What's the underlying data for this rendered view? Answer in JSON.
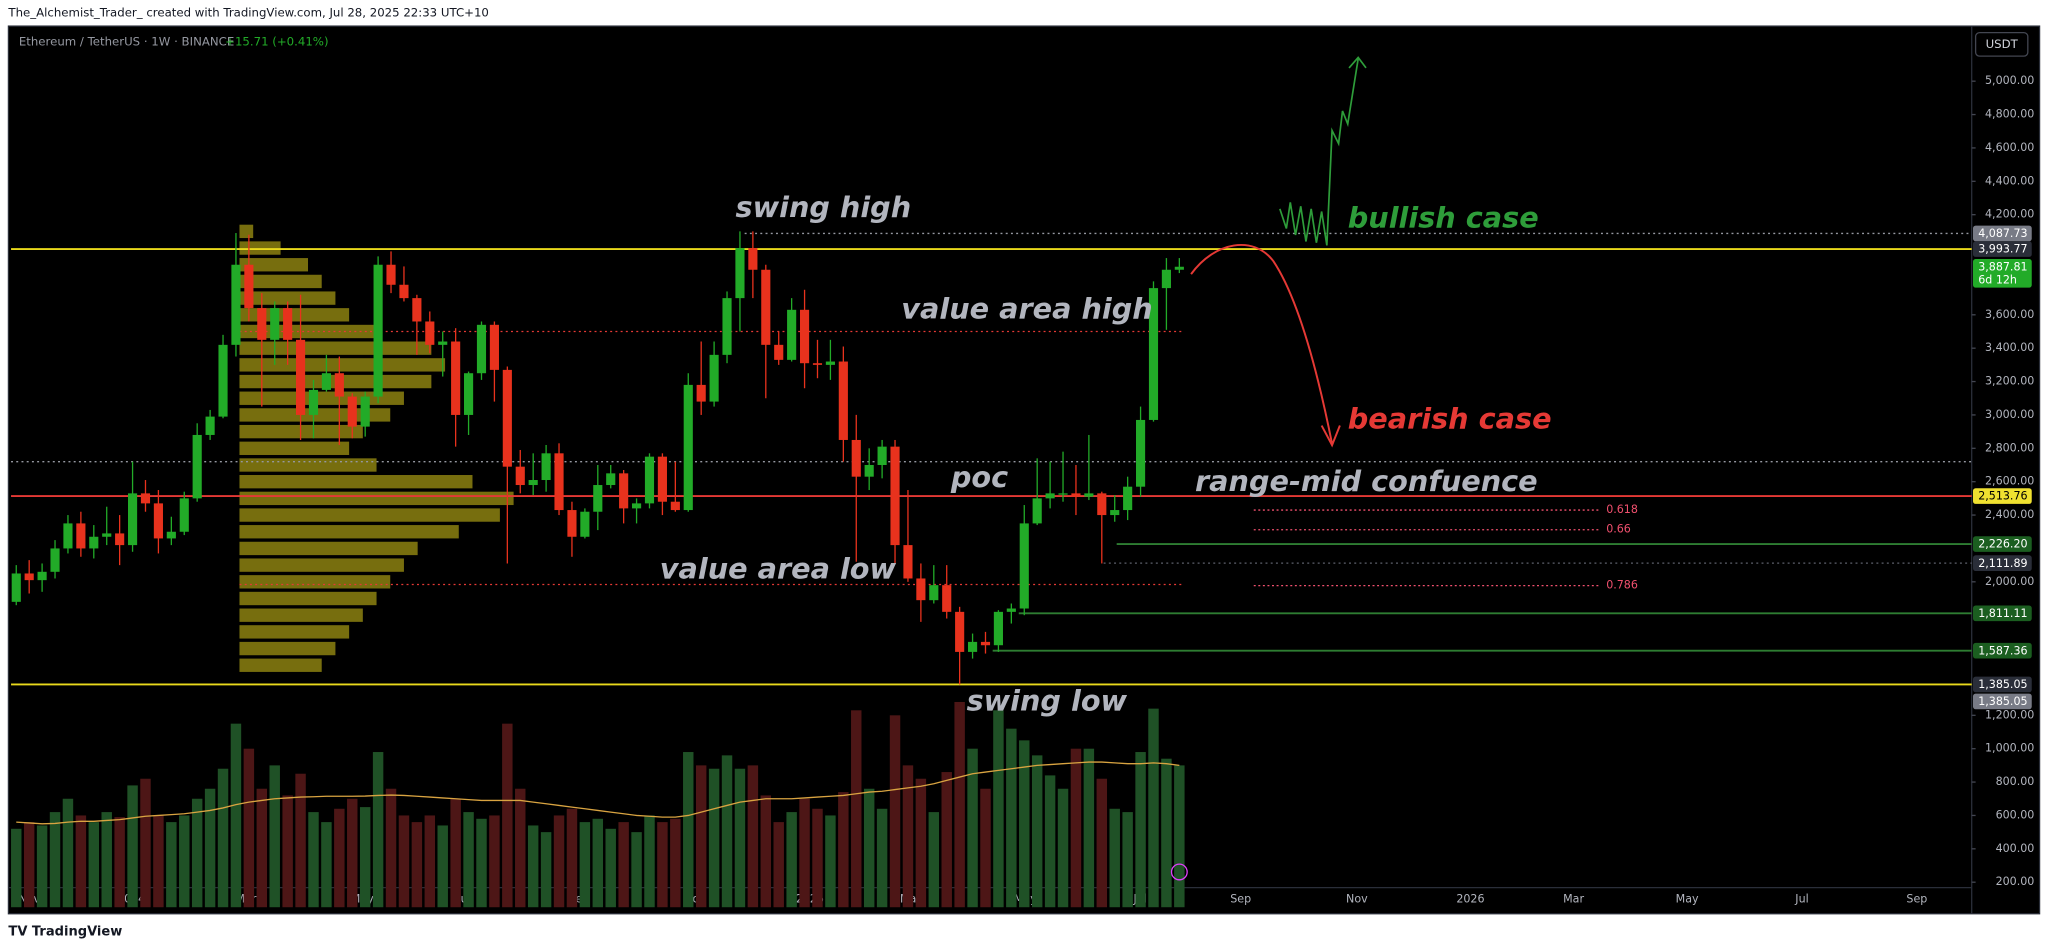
{
  "header": {
    "author_line": "The_Alchemist_Trader_ created with TradingView.com, Jul 28, 2025 22:33 UTC+10"
  },
  "footer": {
    "brand": "TradingView"
  },
  "chart_data": {
    "type": "candlestick",
    "symbol": "Ethereum / TetherUS · 1W · BINANCE",
    "change": "+15.71 (+0.41%)",
    "currency": "USDT",
    "up_color": "#22ab28",
    "down_color": "#e8321d",
    "x_labels": [
      "Nov",
      "2024",
      "Mar",
      "May",
      "Jul",
      "Sep",
      "Nov",
      "2025",
      "Mar",
      "May",
      "Jul",
      "Sep",
      "Nov",
      "2026",
      "Mar",
      "May",
      "Jul",
      "Sep"
    ],
    "candles": [
      [
        1880,
        2100,
        1860,
        2050
      ],
      [
        2050,
        2130,
        1930,
        2010
      ],
      [
        2010,
        2110,
        1940,
        2060
      ],
      [
        2060,
        2250,
        2020,
        2200
      ],
      [
        2200,
        2400,
        2170,
        2350
      ],
      [
        2350,
        2420,
        2150,
        2200
      ],
      [
        2200,
        2340,
        2140,
        2270
      ],
      [
        2270,
        2450,
        2220,
        2290
      ],
      [
        2290,
        2400,
        2100,
        2220
      ],
      [
        2220,
        2720,
        2180,
        2530
      ],
      [
        2530,
        2610,
        2420,
        2470
      ],
      [
        2470,
        2550,
        2170,
        2260
      ],
      [
        2260,
        2390,
        2220,
        2300
      ],
      [
        2300,
        2540,
        2280,
        2500
      ],
      [
        2500,
        2950,
        2480,
        2880
      ],
      [
        2880,
        3030,
        2850,
        2990
      ],
      [
        2990,
        3480,
        2980,
        3420
      ],
      [
        3420,
        4090,
        3350,
        3900
      ],
      [
        3900,
        4080,
        3560,
        3640
      ],
      [
        3640,
        3730,
        3050,
        3450
      ],
      [
        3450,
        3680,
        3300,
        3640
      ],
      [
        3640,
        3680,
        3300,
        3450
      ],
      [
        3450,
        3720,
        2850,
        3000
      ],
      [
        3000,
        3210,
        2860,
        3150
      ],
      [
        3150,
        3360,
        3140,
        3250
      ],
      [
        3250,
        3350,
        2820,
        3110
      ],
      [
        3110,
        3130,
        2860,
        2930
      ],
      [
        2930,
        3140,
        2870,
        3110
      ],
      [
        3110,
        3950,
        3070,
        3900
      ],
      [
        3900,
        3980,
        3730,
        3780
      ],
      [
        3780,
        3890,
        3680,
        3700
      ],
      [
        3700,
        3720,
        3360,
        3560
      ],
      [
        3560,
        3620,
        3370,
        3420
      ],
      [
        3420,
        3500,
        3230,
        3440
      ],
      [
        3440,
        3520,
        2810,
        3000
      ],
      [
        3000,
        3260,
        2880,
        3250
      ],
      [
        3250,
        3560,
        3210,
        3540
      ],
      [
        3540,
        3560,
        3080,
        3270
      ],
      [
        3270,
        3290,
        2110,
        2690
      ],
      [
        2690,
        2790,
        2530,
        2580
      ],
      [
        2580,
        2770,
        2520,
        2610
      ],
      [
        2610,
        2820,
        2540,
        2770
      ],
      [
        2770,
        2830,
        2400,
        2430
      ],
      [
        2430,
        2480,
        2150,
        2270
      ],
      [
        2270,
        2440,
        2260,
        2420
      ],
      [
        2420,
        2700,
        2310,
        2580
      ],
      [
        2580,
        2700,
        2560,
        2650
      ],
      [
        2650,
        2670,
        2350,
        2440
      ],
      [
        2440,
        2500,
        2350,
        2470
      ],
      [
        2470,
        2770,
        2440,
        2750
      ],
      [
        2750,
        2770,
        2400,
        2480
      ],
      [
        2480,
        2720,
        2420,
        2430
      ],
      [
        2430,
        3250,
        2420,
        3180
      ],
      [
        3180,
        3440,
        3000,
        3080
      ],
      [
        3080,
        3440,
        3050,
        3360
      ],
      [
        3360,
        3740,
        3310,
        3700
      ],
      [
        3700,
        4100,
        3500,
        4000
      ],
      [
        4000,
        4100,
        3700,
        3870
      ],
      [
        3870,
        3900,
        3100,
        3420
      ],
      [
        3420,
        3500,
        3300,
        3330
      ],
      [
        3330,
        3700,
        3320,
        3630
      ],
      [
        3630,
        3750,
        3160,
        3310
      ],
      [
        3310,
        3450,
        3220,
        3300
      ],
      [
        3300,
        3450,
        3210,
        3320
      ],
      [
        3320,
        3410,
        2720,
        2850
      ],
      [
        2850,
        3000,
        2120,
        2630
      ],
      [
        2630,
        2800,
        2550,
        2700
      ],
      [
        2700,
        2850,
        2620,
        2810
      ],
      [
        2810,
        2850,
        2110,
        2220
      ],
      [
        2220,
        2550,
        2000,
        2020
      ],
      [
        2020,
        2110,
        1760,
        1890
      ],
      [
        1890,
        2100,
        1870,
        1980
      ],
      [
        1980,
        2100,
        1780,
        1820
      ],
      [
        1820,
        1850,
        1385,
        1580
      ],
      [
        1580,
        1690,
        1540,
        1640
      ],
      [
        1640,
        1700,
        1570,
        1620
      ],
      [
        1620,
        1830,
        1580,
        1820
      ],
      [
        1820,
        1870,
        1750,
        1840
      ],
      [
        1840,
        2460,
        1800,
        2350
      ],
      [
        2350,
        2740,
        2340,
        2500
      ],
      [
        2500,
        2720,
        2440,
        2530
      ],
      [
        2530,
        2780,
        2480,
        2530
      ],
      [
        2530,
        2700,
        2400,
        2510
      ],
      [
        2510,
        2880,
        2490,
        2530
      ],
      [
        2530,
        2540,
        2110,
        2400
      ],
      [
        2400,
        2520,
        2360,
        2430
      ],
      [
        2430,
        2630,
        2370,
        2570
      ],
      [
        2570,
        3050,
        2510,
        2970
      ],
      [
        2970,
        3800,
        2960,
        3760
      ],
      [
        3760,
        3940,
        3510,
        3870
      ],
      [
        3870,
        3940,
        3850,
        3888
      ]
    ],
    "volume": [
      520,
      560,
      540,
      620,
      700,
      600,
      560,
      620,
      590,
      780,
      820,
      600,
      560,
      600,
      700,
      760,
      880,
      1150,
      1000,
      760,
      900,
      720,
      850,
      620,
      560,
      640,
      700,
      650,
      980,
      760,
      600,
      560,
      600,
      540,
      700,
      620,
      580,
      600,
      1150,
      760,
      540,
      500,
      600,
      640,
      560,
      580,
      520,
      560,
      500,
      600,
      560,
      580,
      980,
      900,
      880,
      960,
      880,
      900,
      720,
      560,
      620,
      700,
      640,
      600,
      740,
      1230,
      760,
      640,
      1200,
      900,
      820,
      620,
      860,
      1280,
      1000,
      760,
      1230,
      1120,
      1050,
      960,
      840,
      760,
      1000,
      1000,
      820,
      640,
      620,
      980,
      1240,
      940,
      900
    ],
    "volume_up_color": "#1f5126",
    "volume_down_color": "#4d1616",
    "volume_ma": [
      560,
      555,
      550,
      552,
      560,
      565,
      565,
      570,
      575,
      585,
      595,
      600,
      605,
      610,
      620,
      630,
      645,
      665,
      680,
      690,
      700,
      705,
      710,
      712,
      715,
      715,
      715,
      716,
      720,
      722,
      720,
      715,
      710,
      705,
      700,
      695,
      690,
      690,
      690,
      690,
      680,
      670,
      660,
      650,
      640,
      630,
      620,
      610,
      600,
      595,
      590,
      590,
      600,
      620,
      640,
      660,
      680,
      690,
      700,
      700,
      700,
      705,
      710,
      715,
      720,
      730,
      740,
      745,
      755,
      765,
      775,
      790,
      810,
      830,
      850,
      860,
      870,
      880,
      890,
      900,
      905,
      910,
      915,
      920,
      920,
      915,
      910,
      910,
      915,
      910,
      900
    ],
    "volume_ma_color": "#d9a441",
    "volume_profile": {
      "color": "#d8c81a",
      "prices": [
        1500,
        1600,
        1700,
        1800,
        1900,
        2000,
        2100,
        2200,
        2300,
        2400,
        2500,
        2600,
        2700,
        2800,
        2900,
        3000,
        3100,
        3200,
        3300,
        3400,
        3500,
        3600,
        3700,
        3800,
        3900,
        4000,
        4100
      ],
      "values": [
        30,
        35,
        40,
        45,
        50,
        55,
        60,
        65,
        80,
        95,
        100,
        85,
        50,
        40,
        45,
        55,
        60,
        70,
        75,
        70,
        50,
        40,
        35,
        30,
        25,
        15,
        5
      ]
    },
    "ylim": [
      50,
      5330
    ],
    "yticks": [
      {
        "value": 5000,
        "label": "5,000.00"
      },
      {
        "value": 4800,
        "label": "4,800.00"
      },
      {
        "value": 4600,
        "label": "4,600.00"
      },
      {
        "value": 4400,
        "label": "4,400.00"
      },
      {
        "value": 4200,
        "label": "4,200.00"
      },
      {
        "value": 3600,
        "label": "3,600.00"
      },
      {
        "value": 3400,
        "label": "3,400.00"
      },
      {
        "value": 3200,
        "label": "3,200.00"
      },
      {
        "value": 3000,
        "label": "3,000.00"
      },
      {
        "value": 2800,
        "label": "2,800.00"
      },
      {
        "value": 2600,
        "label": "2,600.00"
      },
      {
        "value": 2400,
        "label": "2,400.00"
      },
      {
        "value": 2000,
        "label": "2,000.00"
      },
      {
        "value": 1200,
        "label": "1,200.00"
      },
      {
        "value": 1000,
        "label": "1,000.00"
      },
      {
        "value": 800,
        "label": "800.00"
      },
      {
        "value": 600,
        "label": "600.00"
      },
      {
        "value": 400,
        "label": "400.00"
      },
      {
        "value": 200,
        "label": "200.00"
      }
    ],
    "levels": [
      {
        "value": 3993.77,
        "color": "#e9d91c",
        "style": "solid"
      },
      {
        "value": 4087.73,
        "color": "#9598a1",
        "style": "dotted"
      },
      {
        "value": 2720,
        "color": "#9598a1",
        "style": "dotted"
      },
      {
        "value": 3500,
        "color": "#e53935",
        "style": "dotted"
      },
      {
        "value": 2513.76,
        "color": "#e53935",
        "style": "solid"
      },
      {
        "value": 1984,
        "color": "#e53935",
        "style": "dotted"
      },
      {
        "value": 2226.2,
        "color": "#2e7d32",
        "style": "solid"
      },
      {
        "value": 2111.89,
        "color": "#5d606b",
        "style": "dotted"
      },
      {
        "value": 1811.11,
        "color": "#2e7d32",
        "style": "solid"
      },
      {
        "value": 1587.36,
        "color": "#2e7d32",
        "style": "solid"
      },
      {
        "value": 1385.05,
        "color": "#e9d91c",
        "style": "solid"
      }
    ],
    "price_tags": [
      {
        "value": 4087.73,
        "label": "4,087.73",
        "color": "#787b86",
        "text_color": "#ffffff"
      },
      {
        "value": 3993.77,
        "label": "3,993.77",
        "color": "#2a2e39",
        "text_color": "#ffffff"
      },
      {
        "value": 3887.81,
        "label": "3,887.81",
        "sublabel": "6d 12h",
        "color": "#22ab28",
        "text_color": "#ffffff"
      },
      {
        "value": 2513.76,
        "label": "2,513.76",
        "color": "#f0e130",
        "text_color": "#000000"
      },
      {
        "value": 2226.2,
        "label": "2,226.20",
        "color": "#1b5e20",
        "text_color": "#ffffff"
      },
      {
        "value": 2111.89,
        "label": "2,111.89",
        "color": "#2a2e39",
        "text_color": "#ffffff"
      },
      {
        "value": 1811.11,
        "label": "1,811.11",
        "color": "#1b5e20",
        "text_color": "#ffffff"
      },
      {
        "value": 1587.36,
        "label": "1,587.36",
        "color": "#1b5e20",
        "text_color": "#ffffff"
      },
      {
        "value": 1385.05,
        "label": "1,385.05",
        "color": "#2a2e39",
        "text_color": "#ffffff"
      },
      {
        "value": 1385.05,
        "label": "1,385.05",
        "color": "#787b86",
        "text_color": "#ffffff"
      }
    ],
    "fib_levels": [
      {
        "value": 2430,
        "label": "0.618"
      },
      {
        "value": 2312,
        "label": "0.66"
      },
      {
        "value": 1977,
        "label": "0.786"
      }
    ],
    "fib_color": "#f0506e",
    "annotations": [
      {
        "text": "swing high",
        "color": "#b2b5be"
      },
      {
        "text": "value area high",
        "color": "#b2b5be"
      },
      {
        "text": "poc",
        "color": "#b2b5be"
      },
      {
        "text": "range-mid confuence",
        "color": "#b2b5be"
      },
      {
        "text": "value area low",
        "color": "#b2b5be"
      },
      {
        "text": "swing low",
        "color": "#b2b5be"
      },
      {
        "text": "bullish case",
        "color": "#2e9d3a"
      },
      {
        "text": "bearish case",
        "color": "#e53935"
      }
    ]
  }
}
